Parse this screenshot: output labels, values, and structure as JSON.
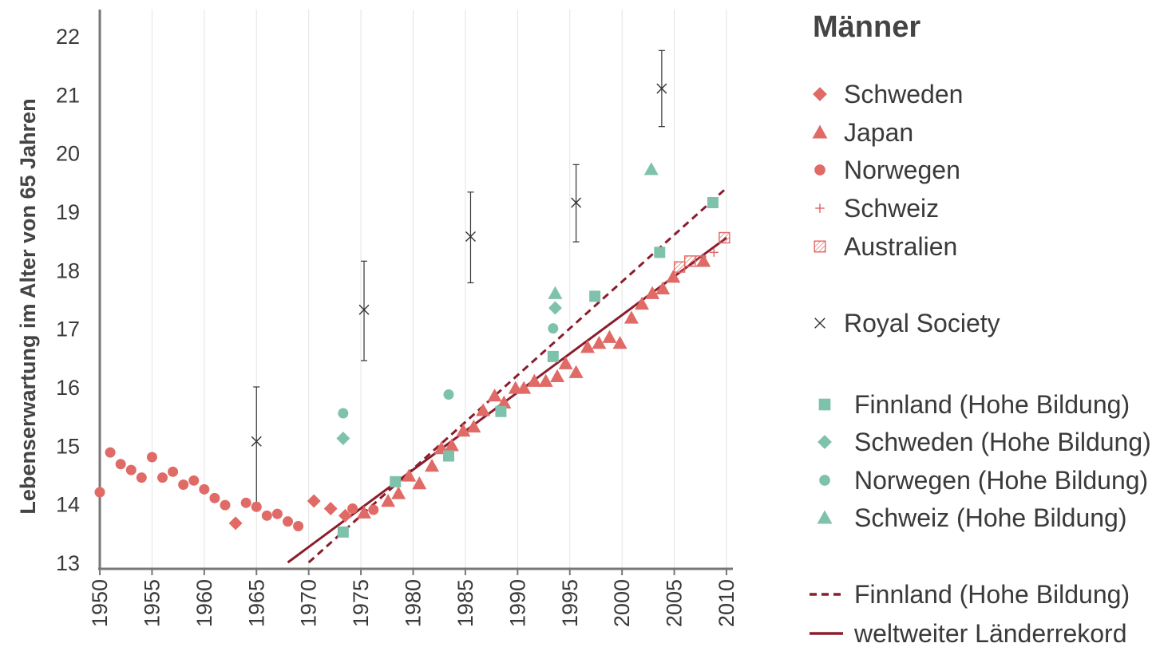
{
  "chart_data": {
    "type": "scatter",
    "title": "",
    "xlabel": "",
    "ylabel": "Lebenserwartung im Alter von 65 Jahren",
    "xlim": [
      1950,
      2010
    ],
    "ylim": [
      13,
      22
    ],
    "x_ticks": [
      "1950",
      "1955",
      "1960",
      "1965",
      "1970",
      "1975",
      "1980",
      "1985",
      "1990",
      "1995",
      "2000",
      "2005",
      "2010"
    ],
    "y_ticks": [
      "13",
      "14",
      "15",
      "16",
      "17",
      "18",
      "19",
      "20",
      "21",
      "22"
    ],
    "grid": "vertical",
    "legend_title": "Männer",
    "legend_position": "right",
    "colors": {
      "red": "#e06a66",
      "teal": "#7fc2ac",
      "black": "#333333",
      "line": "#8b1d2c"
    },
    "series": [
      {
        "name": "Schweden",
        "marker": "diamond",
        "color": "#e06a66",
        "points": [
          [
            1963,
            13.67
          ],
          [
            1970.5,
            14.05
          ],
          [
            1972.1,
            13.92
          ],
          [
            1973.5,
            13.8
          ]
        ]
      },
      {
        "name": "Japan",
        "marker": "triangle",
        "color": "#e06a66",
        "points": [
          [
            1975.3,
            13.85
          ],
          [
            1977.6,
            14.05
          ],
          [
            1978.6,
            14.18
          ],
          [
            1979.6,
            14.48
          ],
          [
            1980.6,
            14.35
          ],
          [
            1981.8,
            14.65
          ],
          [
            1982.7,
            14.95
          ],
          [
            1983.7,
            15.0
          ],
          [
            1984.8,
            15.25
          ],
          [
            1985.8,
            15.32
          ],
          [
            1986.7,
            15.6
          ],
          [
            1987.8,
            15.85
          ],
          [
            1988.7,
            15.73
          ],
          [
            1989.8,
            15.98
          ],
          [
            1990.6,
            15.98
          ],
          [
            1991.6,
            16.1
          ],
          [
            1992.7,
            16.1
          ],
          [
            1993.8,
            16.18
          ],
          [
            1994.6,
            16.4
          ],
          [
            1995.6,
            16.25
          ],
          [
            1996.7,
            16.68
          ],
          [
            1997.8,
            16.75
          ],
          [
            1998.8,
            16.85
          ],
          [
            1999.8,
            16.75
          ],
          [
            2000.9,
            17.18
          ],
          [
            2001.9,
            17.42
          ],
          [
            2002.9,
            17.6
          ],
          [
            2003.9,
            17.68
          ],
          [
            2004.9,
            17.88
          ],
          [
            2007.8,
            18.15
          ]
        ]
      },
      {
        "name": "Norwegen",
        "marker": "circle",
        "color": "#e06a66",
        "points": [
          [
            1950,
            14.2
          ],
          [
            1951,
            14.88
          ],
          [
            1952,
            14.68
          ],
          [
            1953,
            14.58
          ],
          [
            1954,
            14.45
          ],
          [
            1955,
            14.8
          ],
          [
            1956,
            14.45
          ],
          [
            1957,
            14.55
          ],
          [
            1958,
            14.33
          ],
          [
            1959,
            14.4
          ],
          [
            1960,
            14.25
          ],
          [
            1961,
            14.1
          ],
          [
            1962,
            13.98
          ],
          [
            1964,
            14.02
          ],
          [
            1965,
            13.95
          ],
          [
            1966,
            13.8
          ],
          [
            1967,
            13.83
          ],
          [
            1968,
            13.7
          ],
          [
            1969,
            13.62
          ],
          [
            1974.2,
            13.92
          ],
          [
            1976.2,
            13.9
          ]
        ]
      },
      {
        "name": "Schweiz",
        "marker": "plus",
        "color": "#e06a66",
        "points": [
          [
            2008.8,
            18.3
          ]
        ]
      },
      {
        "name": "Australien",
        "marker": "hatched-square",
        "color": "#e06a66",
        "points": [
          [
            2005.5,
            18.05
          ],
          [
            2006.5,
            18.15
          ],
          [
            2007.5,
            18.15
          ],
          [
            2009.8,
            18.55
          ]
        ]
      },
      {
        "name": "Royal Society",
        "marker": "cross",
        "color": "#333333",
        "points": [
          [
            1965,
            15.07
          ],
          [
            1975.3,
            17.32
          ],
          [
            1985.5,
            18.57
          ],
          [
            1995.6,
            19.15
          ],
          [
            2003.8,
            21.1
          ]
        ],
        "error_low": [
          14.02,
          16.45,
          17.78,
          18.48,
          20.45
        ],
        "error_high": [
          16.0,
          18.15,
          19.33,
          19.8,
          21.75
        ]
      },
      {
        "name": "Finnland (Hohe Bildung)",
        "marker": "square",
        "color": "#7fc2ac",
        "points": [
          [
            1973.3,
            13.52
          ],
          [
            1978.3,
            14.38
          ],
          [
            1983.4,
            14.82
          ],
          [
            1988.4,
            15.58
          ],
          [
            1993.4,
            16.52
          ],
          [
            1997.4,
            17.55
          ],
          [
            2003.6,
            18.3
          ],
          [
            2008.7,
            19.15
          ]
        ]
      },
      {
        "name": "Schweden (Hohe Bildung)",
        "marker": "diamond",
        "color": "#7fc2ac",
        "points": [
          [
            1973.3,
            15.12
          ],
          [
            1993.6,
            17.35
          ]
        ]
      },
      {
        "name": "Norwegen (Hohe Bildung)",
        "marker": "circle",
        "color": "#7fc2ac",
        "points": [
          [
            1973.3,
            15.55
          ],
          [
            1983.4,
            15.87
          ],
          [
            1993.4,
            17.0
          ]
        ]
      },
      {
        "name": "Schweiz (Hohe Bildung)",
        "marker": "triangle",
        "color": "#7fc2ac",
        "points": [
          [
            1993.6,
            17.6
          ],
          [
            2002.8,
            19.72
          ]
        ]
      }
    ],
    "lines": [
      {
        "name": "Finnland (Hohe Bildung)",
        "style": "dashed",
        "color": "#8b1d2c",
        "from": [
          1970,
          13.0
        ],
        "to": [
          2010,
          19.4
        ]
      },
      {
        "name": "weltweiter Länderrekord",
        "style": "solid",
        "color": "#8b1d2c",
        "from": [
          1968,
          13.0
        ],
        "to": [
          2010,
          18.55
        ]
      }
    ]
  }
}
